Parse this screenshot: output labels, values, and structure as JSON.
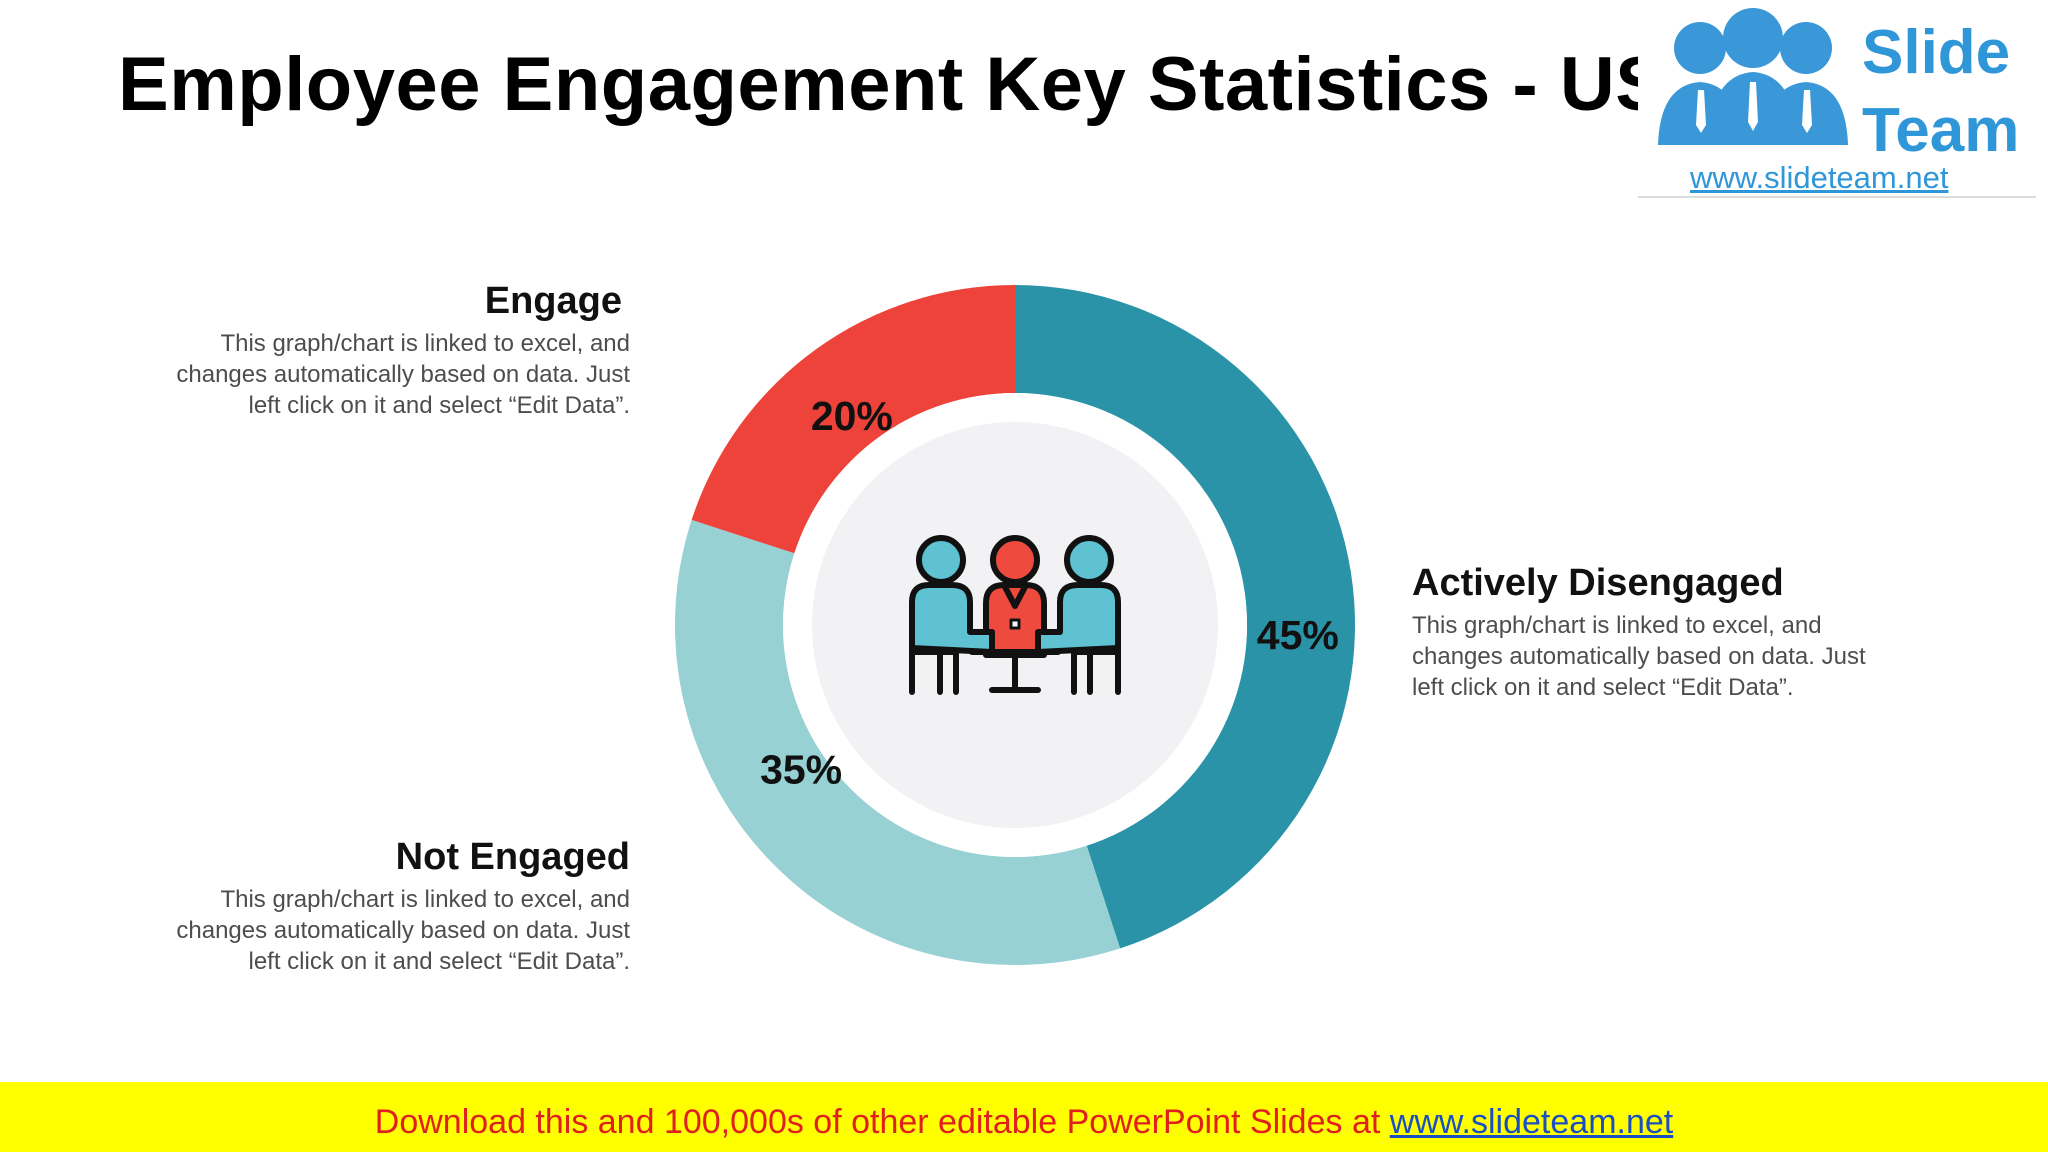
{
  "title": "Employee Engagement Key Statistics - US",
  "logo": {
    "line1": "Slide",
    "line2": "Team",
    "url": "www.slideteam.net",
    "color": "#2f96d8"
  },
  "chart_data": {
    "type": "pie",
    "variant": "donut",
    "slices": [
      {
        "label": "Actively Disengaged",
        "value": 45,
        "display": "45%",
        "color": "#2b93a8"
      },
      {
        "label": "Not Engaged",
        "value": 35,
        "display": "35%",
        "color": "#97d1d3"
      },
      {
        "label": "Engage",
        "value": 20,
        "display": "20%",
        "color": "#ee433a"
      }
    ],
    "start_angle": "12 o'clock",
    "direction": "clockwise",
    "center_icon": "team-meeting-icon"
  },
  "labels": {
    "engage": {
      "title": "Engage",
      "desc": [
        "This graph/chart is linked to excel, and",
        "changes automatically based on data. Just",
        "left click on it and select “Edit Data”."
      ]
    },
    "not_engaged": {
      "title": "Not Engaged",
      "desc": [
        "This graph/chart is linked to excel, and",
        "changes automatically based on data. Just",
        "left click on it and select “Edit Data”."
      ]
    },
    "actively_disengaged": {
      "title": "Actively Disengaged",
      "desc": [
        "This graph/chart is linked to excel, and",
        "changes automatically based on data. Just",
        "left click on it and select “Edit Data”."
      ]
    }
  },
  "banner": {
    "text": "Download this and 100,000s of other editable PowerPoint Slides at ",
    "url": "www.slideteam.net",
    "text_color": "#e01f1f",
    "url_color": "#1a4fc4",
    "background": "#ffff00"
  }
}
